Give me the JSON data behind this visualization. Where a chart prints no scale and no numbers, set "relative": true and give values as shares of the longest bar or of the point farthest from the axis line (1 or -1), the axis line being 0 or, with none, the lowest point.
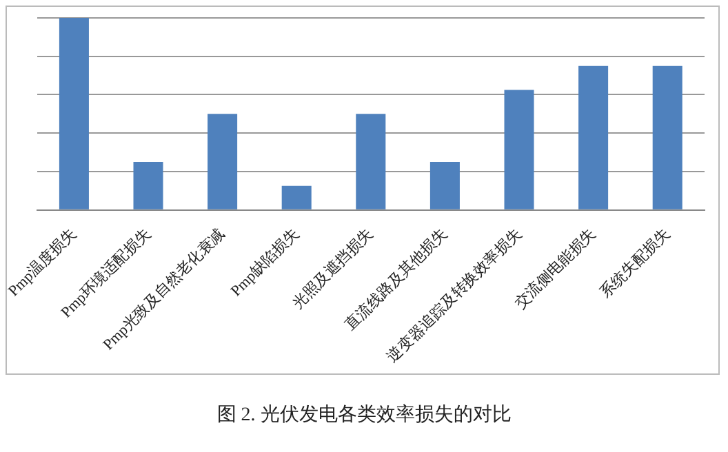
{
  "chart_data": {
    "type": "bar",
    "relative": true,
    "categories": [
      "Pmp温度损失",
      "Pmp环境适配损失",
      "Pmp光致及自然老化衰减",
      "Pmp缺陷损失",
      "光照及遮挡损失",
      "直流线路及其他损失",
      "逆变器追踪及转换效率损失",
      "交流侧电能损失",
      "系统失配损失"
    ],
    "values": [
      1,
      0.25,
      0.5,
      0.125,
      0.5,
      0.25,
      0.625,
      0.75,
      0.75
    ],
    "color": "#4f81bd",
    "grid": "y",
    "legend": false,
    "annotations": [
      "图 2. 光伏发电各类效率损失的对比"
    ]
  }
}
